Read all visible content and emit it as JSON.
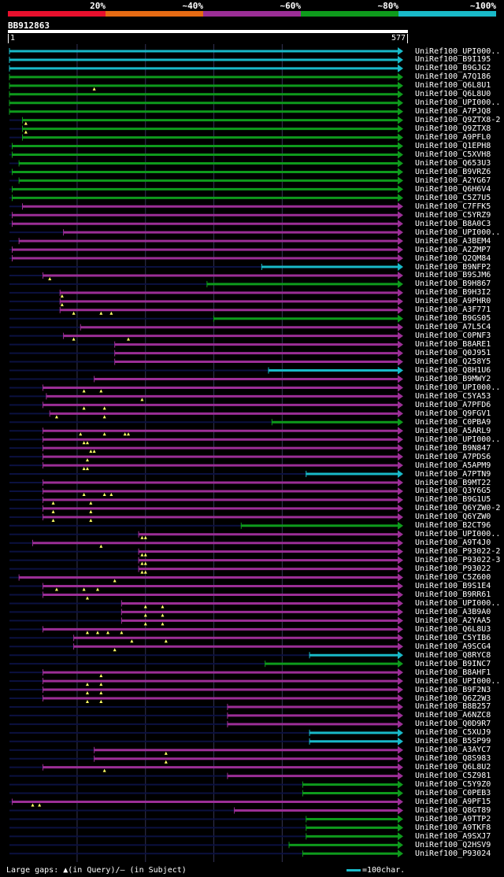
{
  "legend": [
    {
      "label": "20%",
      "color": "#e8102d"
    },
    {
      "label": "~40%",
      "color": "#e56a13"
    },
    {
      "label": "~60%",
      "color": "#9b2e96"
    },
    {
      "label": "~80%",
      "color": "#0e9a1c"
    },
    {
      "label": "~100%",
      "color": "#19b9c8"
    }
  ],
  "query": {
    "id": "BB912863",
    "start": "1",
    "end": "577"
  },
  "footer": {
    "gaps_text": "Large gaps: ▲(in Query)/– (in Subject)",
    "scale_text": "=100char."
  },
  "chart_data": {
    "type": "alignment",
    "query_length": 577,
    "identity_colors": {
      "cyan": "#19b9c8",
      "green": "#0e9a1c",
      "purple": "#9b2e96"
    },
    "hits": [
      {
        "label": "UniRef100_UPI000..",
        "start": 1,
        "end": 577,
        "identity": "cyan",
        "gaps": []
      },
      {
        "label": "UniRef100_B9I195",
        "start": 1,
        "end": 577,
        "identity": "cyan",
        "gaps": []
      },
      {
        "label": "UniRef100_B9GJG2",
        "start": 1,
        "end": 577,
        "identity": "cyan",
        "gaps": []
      },
      {
        "label": "UniRef100_A7Q186",
        "start": 1,
        "end": 577,
        "identity": "green",
        "gaps": []
      },
      {
        "label": "UniRef100_Q6L8U1",
        "start": 1,
        "end": 577,
        "identity": "green",
        "gaps": [
          125
        ]
      },
      {
        "label": "UniRef100_Q6L8U0",
        "start": 1,
        "end": 577,
        "identity": "green",
        "gaps": []
      },
      {
        "label": "UniRef100_UPI000..",
        "start": 1,
        "end": 577,
        "identity": "green",
        "gaps": []
      },
      {
        "label": "UniRef100_A7PJQ8",
        "start": 1,
        "end": 577,
        "identity": "green",
        "gaps": []
      },
      {
        "label": "UniRef100_Q9ZTX8-2",
        "start": 20,
        "end": 577,
        "identity": "green",
        "gaps": [
          25
        ]
      },
      {
        "label": "UniRef100_Q9ZTX8",
        "start": 20,
        "end": 577,
        "identity": "green",
        "gaps": [
          25
        ]
      },
      {
        "label": "UniRef100_A9PFL0",
        "start": 20,
        "end": 577,
        "identity": "green",
        "gaps": []
      },
      {
        "label": "UniRef100_Q1EPH8",
        "start": 5,
        "end": 577,
        "identity": "green",
        "gaps": []
      },
      {
        "label": "UniRef100_C5XVH8",
        "start": 5,
        "end": 577,
        "identity": "green",
        "gaps": []
      },
      {
        "label": "UniRef100_Q653U3",
        "start": 15,
        "end": 577,
        "identity": "green",
        "gaps": []
      },
      {
        "label": "UniRef100_B9VRZ6",
        "start": 5,
        "end": 577,
        "identity": "green",
        "gaps": []
      },
      {
        "label": "UniRef100_A2YG67",
        "start": 15,
        "end": 577,
        "identity": "green",
        "gaps": []
      },
      {
        "label": "UniRef100_Q6H6V4",
        "start": 5,
        "end": 577,
        "identity": "green",
        "gaps": []
      },
      {
        "label": "UniRef100_C5Z7U5",
        "start": 5,
        "end": 577,
        "identity": "green",
        "gaps": []
      },
      {
        "label": "UniRef100_C7FFK5",
        "start": 20,
        "end": 577,
        "identity": "purple",
        "gaps": []
      },
      {
        "label": "UniRef100_C5YRZ9",
        "start": 5,
        "end": 577,
        "identity": "purple",
        "gaps": []
      },
      {
        "label": "UniRef100_B8A0C3",
        "start": 5,
        "end": 577,
        "identity": "purple",
        "gaps": []
      },
      {
        "label": "UniRef100_UPI000..",
        "start": 80,
        "end": 577,
        "identity": "purple",
        "gaps": []
      },
      {
        "label": "UniRef100_A3BEM4",
        "start": 15,
        "end": 577,
        "identity": "purple",
        "gaps": []
      },
      {
        "label": "UniRef100_A2ZMP7",
        "start": 5,
        "end": 577,
        "identity": "purple",
        "gaps": []
      },
      {
        "label": "UniRef100_Q2QM84",
        "start": 5,
        "end": 577,
        "identity": "purple",
        "gaps": []
      },
      {
        "label": "UniRef100_B9NFP2",
        "start": 370,
        "end": 577,
        "identity": "cyan",
        "gaps": []
      },
      {
        "label": "UniRef100_B9SJM6",
        "start": 50,
        "end": 577,
        "identity": "purple",
        "gaps": [
          60
        ]
      },
      {
        "label": "UniRef100_B9H867",
        "start": 290,
        "end": 577,
        "identity": "green",
        "gaps": []
      },
      {
        "label": "UniRef100_B9H3I2",
        "start": 75,
        "end": 577,
        "identity": "purple",
        "gaps": [
          78
        ]
      },
      {
        "label": "UniRef100_A9PHR0",
        "start": 75,
        "end": 577,
        "identity": "purple",
        "gaps": [
          78
        ]
      },
      {
        "label": "UniRef100_A3F771",
        "start": 75,
        "end": 577,
        "identity": "purple",
        "gaps": [
          95,
          135,
          150
        ]
      },
      {
        "label": "UniRef100_B9GS05",
        "start": 300,
        "end": 577,
        "identity": "green",
        "gaps": []
      },
      {
        "label": "UniRef100_A7L5C4",
        "start": 105,
        "end": 577,
        "identity": "purple",
        "gaps": []
      },
      {
        "label": "UniRef100_C0PNF3",
        "start": 80,
        "end": 577,
        "identity": "purple",
        "gaps": [
          95,
          175
        ]
      },
      {
        "label": "UniRef100_B8ARE1",
        "start": 155,
        "end": 577,
        "identity": "purple",
        "gaps": []
      },
      {
        "label": "UniRef100_Q0J951",
        "start": 155,
        "end": 577,
        "identity": "purple",
        "gaps": []
      },
      {
        "label": "UniRef100_Q258Y5",
        "start": 155,
        "end": 577,
        "identity": "purple",
        "gaps": []
      },
      {
        "label": "UniRef100_Q8H1U6",
        "start": 380,
        "end": 577,
        "identity": "cyan",
        "gaps": []
      },
      {
        "label": "UniRef100_B9MWY2",
        "start": 125,
        "end": 577,
        "identity": "purple",
        "gaps": []
      },
      {
        "label": "UniRef100_UPI000..",
        "start": 50,
        "end": 577,
        "identity": "purple",
        "gaps": [
          110,
          135
        ]
      },
      {
        "label": "UniRef100_C5YA53",
        "start": 55,
        "end": 577,
        "identity": "purple",
        "gaps": [
          195
        ]
      },
      {
        "label": "UniRef100_A7PFD6",
        "start": 50,
        "end": 577,
        "identity": "purple",
        "gaps": [
          110,
          140
        ]
      },
      {
        "label": "UniRef100_Q9FGV1",
        "start": 60,
        "end": 577,
        "identity": "purple",
        "gaps": [
          70,
          140
        ]
      },
      {
        "label": "UniRef100_C0PBA9",
        "start": 385,
        "end": 577,
        "identity": "green",
        "gaps": []
      },
      {
        "label": "UniRef100_A5ARL9",
        "start": 50,
        "end": 577,
        "identity": "purple",
        "gaps": [
          105,
          140,
          170,
          175
        ]
      },
      {
        "label": "UniRef100_UPI000..",
        "start": 50,
        "end": 577,
        "identity": "purple",
        "gaps": [
          110,
          115
        ]
      },
      {
        "label": "UniRef100_B9N847",
        "start": 50,
        "end": 577,
        "identity": "purple",
        "gaps": [
          120,
          125
        ]
      },
      {
        "label": "UniRef100_A7PDS6",
        "start": 50,
        "end": 577,
        "identity": "purple",
        "gaps": [
          115
        ]
      },
      {
        "label": "UniRef100_A5APM9",
        "start": 50,
        "end": 577,
        "identity": "purple",
        "gaps": [
          110,
          115
        ]
      },
      {
        "label": "UniRef100_A7PTN9",
        "start": 435,
        "end": 577,
        "identity": "cyan",
        "gaps": []
      },
      {
        "label": "UniRef100_B9MT22",
        "start": 50,
        "end": 577,
        "identity": "purple",
        "gaps": []
      },
      {
        "label": "UniRef100_Q3Y6G5",
        "start": 50,
        "end": 577,
        "identity": "purple",
        "gaps": [
          110,
          140,
          150
        ]
      },
      {
        "label": "UniRef100_B9G1U5",
        "start": 50,
        "end": 577,
        "identity": "purple",
        "gaps": [
          65,
          120
        ]
      },
      {
        "label": "UniRef100_Q6YZW0-2",
        "start": 50,
        "end": 577,
        "identity": "purple",
        "gaps": [
          65,
          120
        ]
      },
      {
        "label": "UniRef100_Q6YZW0",
        "start": 50,
        "end": 577,
        "identity": "purple",
        "gaps": [
          65,
          120
        ]
      },
      {
        "label": "UniRef100_B2CT96",
        "start": 340,
        "end": 577,
        "identity": "green",
        "gaps": []
      },
      {
        "label": "UniRef100_UPI000..",
        "start": 190,
        "end": 577,
        "identity": "purple",
        "gaps": [
          195,
          200
        ]
      },
      {
        "label": "UniRef100_A9T4J0",
        "start": 35,
        "end": 577,
        "identity": "purple",
        "gaps": [
          135
        ]
      },
      {
        "label": "UniRef100_P93022-2",
        "start": 190,
        "end": 577,
        "identity": "purple",
        "gaps": [
          195,
          200
        ]
      },
      {
        "label": "UniRef100_P93022-3",
        "start": 190,
        "end": 577,
        "identity": "purple",
        "gaps": [
          195,
          200
        ]
      },
      {
        "label": "UniRef100_P93022",
        "start": 190,
        "end": 577,
        "identity": "purple",
        "gaps": [
          195,
          200
        ]
      },
      {
        "label": "UniRef100_C5Z600",
        "start": 15,
        "end": 577,
        "identity": "purple",
        "gaps": [
          155
        ]
      },
      {
        "label": "UniRef100_B9S1E4",
        "start": 50,
        "end": 577,
        "identity": "purple",
        "gaps": [
          70,
          110,
          130
        ]
      },
      {
        "label": "UniRef100_B9RR61",
        "start": 50,
        "end": 577,
        "identity": "purple",
        "gaps": [
          115
        ]
      },
      {
        "label": "UniRef100_UPI000..",
        "start": 165,
        "end": 577,
        "identity": "purple",
        "gaps": [
          200,
          225
        ]
      },
      {
        "label": "UniRef100_A3B9A0",
        "start": 165,
        "end": 577,
        "identity": "purple",
        "gaps": [
          200,
          225
        ]
      },
      {
        "label": "UniRef100_A2YAA5",
        "start": 165,
        "end": 577,
        "identity": "purple",
        "gaps": [
          200,
          225
        ]
      },
      {
        "label": "UniRef100_Q6L8U3",
        "start": 50,
        "end": 577,
        "identity": "purple",
        "gaps": [
          115,
          130,
          145,
          165
        ]
      },
      {
        "label": "UniRef100_C5YIB6",
        "start": 95,
        "end": 577,
        "identity": "purple",
        "gaps": [
          180,
          230
        ]
      },
      {
        "label": "UniRef100_A9SCG4",
        "start": 95,
        "end": 577,
        "identity": "purple",
        "gaps": [
          155
        ]
      },
      {
        "label": "UniRef100_Q8RYC8",
        "start": 440,
        "end": 577,
        "identity": "cyan",
        "gaps": []
      },
      {
        "label": "UniRef100_B9INC7",
        "start": 375,
        "end": 577,
        "identity": "green",
        "gaps": []
      },
      {
        "label": "UniRef100_B8AHF1",
        "start": 50,
        "end": 577,
        "identity": "purple",
        "gaps": [
          135
        ]
      },
      {
        "label": "UniRef100_UPI000..",
        "start": 50,
        "end": 577,
        "identity": "purple",
        "gaps": [
          115,
          135
        ]
      },
      {
        "label": "UniRef100_B9F2N3",
        "start": 50,
        "end": 577,
        "identity": "purple",
        "gaps": [
          115,
          135
        ]
      },
      {
        "label": "UniRef100_Q6Z2W3",
        "start": 50,
        "end": 577,
        "identity": "purple",
        "gaps": [
          115,
          135
        ]
      },
      {
        "label": "UniRef100_B8B257",
        "start": 320,
        "end": 577,
        "identity": "purple",
        "gaps": []
      },
      {
        "label": "UniRef100_A6NZC8",
        "start": 320,
        "end": 577,
        "identity": "purple",
        "gaps": []
      },
      {
        "label": "UniRef100_Q0D9R7",
        "start": 320,
        "end": 577,
        "identity": "purple",
        "gaps": []
      },
      {
        "label": "UniRef100_C5XUJ9",
        "start": 440,
        "end": 577,
        "identity": "cyan",
        "gaps": []
      },
      {
        "label": "UniRef100_B5SP99",
        "start": 440,
        "end": 577,
        "identity": "cyan",
        "gaps": []
      },
      {
        "label": "UniRef100_A3AYC7",
        "start": 125,
        "end": 577,
        "identity": "purple",
        "gaps": [
          230
        ]
      },
      {
        "label": "UniRef100_Q8S983",
        "start": 125,
        "end": 577,
        "identity": "purple",
        "gaps": [
          230
        ]
      },
      {
        "label": "UniRef100_Q6L8U2",
        "start": 50,
        "end": 577,
        "identity": "purple",
        "gaps": [
          140
        ]
      },
      {
        "label": "UniRef100_C5Z981",
        "start": 320,
        "end": 577,
        "identity": "purple",
        "gaps": []
      },
      {
        "label": "UniRef100_C5Y9Z0",
        "start": 430,
        "end": 577,
        "identity": "green",
        "gaps": []
      },
      {
        "label": "UniRef100_C0PEB3",
        "start": 430,
        "end": 577,
        "identity": "green",
        "gaps": []
      },
      {
        "label": "UniRef100_A9PF15",
        "start": 5,
        "end": 577,
        "identity": "purple",
        "gaps": [
          35,
          45
        ]
      },
      {
        "label": "UniRef100_Q8GT89",
        "start": 330,
        "end": 577,
        "identity": "purple",
        "gaps": []
      },
      {
        "label": "UniRef100_A9TTP2",
        "start": 435,
        "end": 577,
        "identity": "green",
        "gaps": []
      },
      {
        "label": "UniRef100_A9TKF8",
        "start": 435,
        "end": 577,
        "identity": "green",
        "gaps": []
      },
      {
        "label": "UniRef100_A9SXJ7",
        "start": 435,
        "end": 577,
        "identity": "green",
        "gaps": []
      },
      {
        "label": "UniRef100_Q2HSV9",
        "start": 410,
        "end": 577,
        "identity": "green",
        "gaps": []
      },
      {
        "label": "UniRef100_P93024",
        "start": 430,
        "end": 577,
        "identity": "green",
        "gaps": []
      }
    ]
  }
}
